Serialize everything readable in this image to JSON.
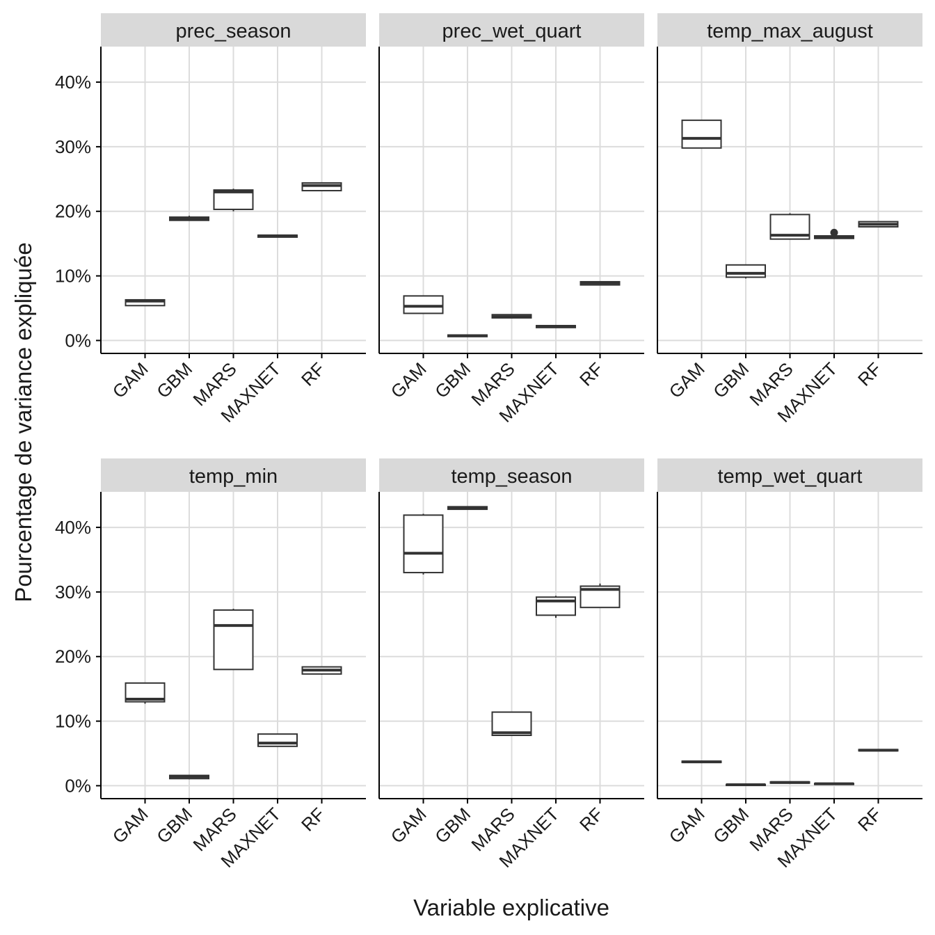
{
  "chart_data": {
    "type": "boxplot",
    "facet_layout": "3 columns x 2 rows, shared y-axis",
    "xlabel": "Variable explicative",
    "ylabel": "Pourcentage de variance expliquée",
    "categories": [
      "GAM",
      "GBM",
      "MARS",
      "MAXNET",
      "RF"
    ],
    "y_ticks": [
      "0%",
      "10%",
      "20%",
      "30%",
      "40%"
    ],
    "y_tick_values": [
      0,
      10,
      20,
      30,
      40
    ],
    "ylim": [
      -2,
      45.5
    ],
    "grid": true,
    "colors": {
      "strip_background": "#d9d9d9",
      "grid": "#dcdcdc",
      "box_line": "#333333",
      "axis_line": "#000000"
    },
    "facets": [
      {
        "title": "prec_season",
        "boxes": [
          {
            "category": "GAM",
            "whisker_low": 5.4,
            "q1": 5.4,
            "median": 6.1,
            "q3": 6.3,
            "whisker_high": 6.3,
            "outliers": []
          },
          {
            "category": "GBM",
            "whisker_low": 18.6,
            "q1": 18.6,
            "median": 18.9,
            "q3": 19.1,
            "whisker_high": 19.3,
            "outliers": []
          },
          {
            "category": "MARS",
            "whisker_low": 20.0,
            "q1": 20.3,
            "median": 23.0,
            "q3": 23.3,
            "whisker_high": 23.5,
            "outliers": []
          },
          {
            "category": "MAXNET",
            "whisker_low": 16.0,
            "q1": 16.0,
            "median": 16.2,
            "q3": 16.3,
            "whisker_high": 16.3,
            "outliers": []
          },
          {
            "category": "RF",
            "whisker_low": 23.2,
            "q1": 23.2,
            "median": 24.0,
            "q3": 24.4,
            "whisker_high": 24.4,
            "outliers": []
          }
        ]
      },
      {
        "title": "prec_wet_quart",
        "boxes": [
          {
            "category": "GAM",
            "whisker_low": 4.2,
            "q1": 4.2,
            "median": 5.3,
            "q3": 6.9,
            "whisker_high": 6.9,
            "outliers": []
          },
          {
            "category": "GBM",
            "whisker_low": 0.6,
            "q1": 0.6,
            "median": 0.75,
            "q3": 0.85,
            "whisker_high": 0.9,
            "outliers": []
          },
          {
            "category": "MARS",
            "whisker_low": 3.5,
            "q1": 3.5,
            "median": 3.7,
            "q3": 4.0,
            "whisker_high": 4.0,
            "outliers": []
          },
          {
            "category": "MAXNET",
            "whisker_low": 2.0,
            "q1": 2.0,
            "median": 2.2,
            "q3": 2.3,
            "whisker_high": 2.3,
            "outliers": []
          },
          {
            "category": "RF",
            "whisker_low": 8.6,
            "q1": 8.6,
            "median": 8.9,
            "q3": 9.1,
            "whisker_high": 9.1,
            "outliers": []
          }
        ]
      },
      {
        "title": "temp_max_august",
        "boxes": [
          {
            "category": "GAM",
            "whisker_low": 29.8,
            "q1": 29.8,
            "median": 31.3,
            "q3": 34.1,
            "whisker_high": 34.1,
            "outliers": []
          },
          {
            "category": "GBM",
            "whisker_low": 9.6,
            "q1": 9.8,
            "median": 10.4,
            "q3": 11.7,
            "whisker_high": 11.7,
            "outliers": []
          },
          {
            "category": "MARS",
            "whisker_low": 15.7,
            "q1": 15.7,
            "median": 16.3,
            "q3": 19.5,
            "whisker_high": 19.7,
            "outliers": []
          },
          {
            "category": "MAXNET",
            "whisker_low": 15.8,
            "q1": 15.8,
            "median": 16.0,
            "q3": 16.2,
            "whisker_high": 16.2,
            "outliers": [
              16.7
            ]
          },
          {
            "category": "RF",
            "whisker_low": 17.6,
            "q1": 17.6,
            "median": 18.0,
            "q3": 18.4,
            "whisker_high": 18.4,
            "outliers": []
          }
        ]
      },
      {
        "title": "temp_min",
        "boxes": [
          {
            "category": "GAM",
            "whisker_low": 12.7,
            "q1": 13.0,
            "median": 13.4,
            "q3": 15.9,
            "whisker_high": 15.9,
            "outliers": []
          },
          {
            "category": "GBM",
            "whisker_low": 1.0,
            "q1": 1.1,
            "median": 1.4,
            "q3": 1.6,
            "whisker_high": 1.6,
            "outliers": []
          },
          {
            "category": "MARS",
            "whisker_low": 18.0,
            "q1": 18.0,
            "median": 24.8,
            "q3": 27.2,
            "whisker_high": 27.4,
            "outliers": []
          },
          {
            "category": "MAXNET",
            "whisker_low": 6.1,
            "q1": 6.1,
            "median": 6.6,
            "q3": 8.0,
            "whisker_high": 8.0,
            "outliers": []
          },
          {
            "category": "RF",
            "whisker_low": 17.2,
            "q1": 17.3,
            "median": 17.9,
            "q3": 18.4,
            "whisker_high": 18.4,
            "outliers": []
          }
        ]
      },
      {
        "title": "temp_season",
        "boxes": [
          {
            "category": "GAM",
            "whisker_low": 32.7,
            "q1": 33.0,
            "median": 36.0,
            "q3": 41.9,
            "whisker_high": 42.1,
            "outliers": []
          },
          {
            "category": "GBM",
            "whisker_low": 42.8,
            "q1": 42.8,
            "median": 43.0,
            "q3": 43.2,
            "whisker_high": 43.2,
            "outliers": []
          },
          {
            "category": "MARS",
            "whisker_low": 7.8,
            "q1": 7.8,
            "median": 8.2,
            "q3": 11.4,
            "whisker_high": 11.4,
            "outliers": []
          },
          {
            "category": "MAXNET",
            "whisker_low": 26.0,
            "q1": 26.4,
            "median": 28.6,
            "q3": 29.2,
            "whisker_high": 29.4,
            "outliers": []
          },
          {
            "category": "RF",
            "whisker_low": 27.6,
            "q1": 27.6,
            "median": 30.4,
            "q3": 30.9,
            "whisker_high": 31.3,
            "outliers": []
          }
        ]
      },
      {
        "title": "temp_wet_quart",
        "boxes": [
          {
            "category": "GAM",
            "whisker_low": 3.6,
            "q1": 3.6,
            "median": 3.7,
            "q3": 3.8,
            "whisker_high": 3.8,
            "outliers": []
          },
          {
            "category": "GBM",
            "whisker_low": 0.05,
            "q1": 0.05,
            "median": 0.15,
            "q3": 0.2,
            "whisker_high": 0.2,
            "outliers": []
          },
          {
            "category": "MARS",
            "whisker_low": 0.4,
            "q1": 0.4,
            "median": 0.5,
            "q3": 0.6,
            "whisker_high": 0.6,
            "outliers": []
          },
          {
            "category": "MAXNET",
            "whisker_low": 0.2,
            "q1": 0.2,
            "median": 0.3,
            "q3": 0.35,
            "whisker_high": 0.35,
            "outliers": []
          },
          {
            "category": "RF",
            "whisker_low": 5.4,
            "q1": 5.4,
            "median": 5.5,
            "q3": 5.6,
            "whisker_high": 5.6,
            "outliers": []
          }
        ]
      }
    ]
  }
}
